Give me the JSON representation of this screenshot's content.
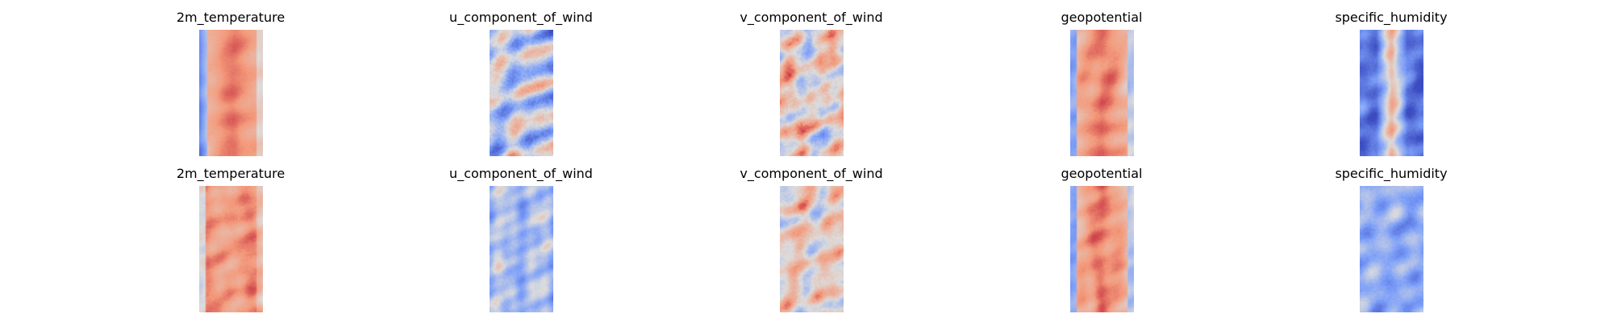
{
  "chart_data": {
    "type": "heatmap",
    "colormap": "coolwarm",
    "axes": "off",
    "layout": {
      "rows": 2,
      "columns": 5
    },
    "panels": [
      {
        "title": "2m_temperature",
        "row": 0,
        "col": 0,
        "pattern": "temperature",
        "seed": 11
      },
      {
        "title": "u_component_of_wind",
        "row": 0,
        "col": 1,
        "pattern": "uwind",
        "seed": 12
      },
      {
        "title": "v_component_of_wind",
        "row": 0,
        "col": 2,
        "pattern": "vwind",
        "seed": 13
      },
      {
        "title": "geopotential",
        "row": 0,
        "col": 3,
        "pattern": "geopotential",
        "seed": 14
      },
      {
        "title": "specific_humidity",
        "row": 0,
        "col": 4,
        "pattern": "humidity",
        "seed": 15
      },
      {
        "title": "2m_temperature",
        "row": 1,
        "col": 0,
        "pattern": "temperature_pred",
        "seed": 21
      },
      {
        "title": "u_component_of_wind",
        "row": 1,
        "col": 1,
        "pattern": "uwind_pred",
        "seed": 22
      },
      {
        "title": "v_component_of_wind",
        "row": 1,
        "col": 2,
        "pattern": "vwind_pred",
        "seed": 23
      },
      {
        "title": "geopotential",
        "row": 1,
        "col": 3,
        "pattern": "geopotential",
        "seed": 24
      },
      {
        "title": "specific_humidity",
        "row": 1,
        "col": 4,
        "pattern": "humidity_pred",
        "seed": 25
      }
    ]
  }
}
